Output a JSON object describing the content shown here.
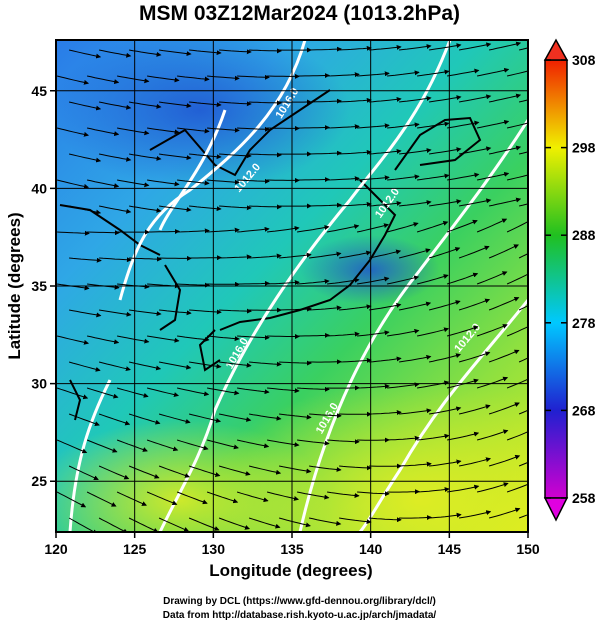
{
  "title": "MSM 03Z12Mar2024 (1013.2hPa)",
  "xlabel": "Longitude (degrees)",
  "ylabel": "Latitude (degrees)",
  "x_ticks": [
    "120",
    "125",
    "130",
    "135",
    "140",
    "145",
    "150"
  ],
  "y_ticks": [
    "25",
    "30",
    "35",
    "40",
    "45"
  ],
  "colorbar_ticks": [
    "258",
    "268",
    "278",
    "288",
    "298",
    "308"
  ],
  "contour_labels": [
    "1016.0",
    "1012.0",
    "1012.0",
    "1016.0",
    "1016.0",
    "1012.0"
  ],
  "credits": {
    "line1": "Drawing by DCL (https://www.gfd-dennou.org/library/dcl/)",
    "line2": "Data from http://database.rish.kyoto-u.ac.jp/arch/jmadata/"
  },
  "chart_data": {
    "type": "heatmap",
    "title": "MSM 03Z12Mar2024 (1013.2hPa)",
    "xlabel": "Longitude (degrees)",
    "ylabel": "Latitude (degrees)",
    "xlim": [
      120,
      150
    ],
    "ylim": [
      22.4,
      47.6
    ],
    "x_ticks": [
      120,
      125,
      130,
      135,
      140,
      145,
      150
    ],
    "y_ticks": [
      25,
      30,
      35,
      40,
      45
    ],
    "color_scale": {
      "min": 258,
      "max": 308,
      "ticks": [
        258,
        268,
        278,
        288,
        298,
        308
      ],
      "colors": [
        "#d000d0",
        "#2020d0",
        "#00c8ff",
        "#20c020",
        "#f0f000",
        "#f02000"
      ]
    },
    "contour_labels": [
      "1016.0",
      "1012.0",
      "1012.0",
      "1016.0",
      "1016.0",
      "1012.0"
    ],
    "grid": true
  }
}
